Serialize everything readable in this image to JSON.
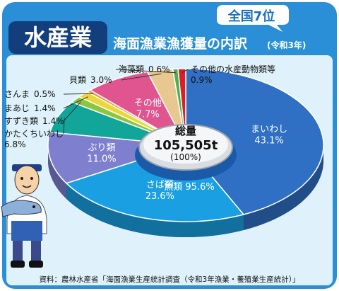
{
  "header": {
    "title": "水産業",
    "subtitle": "海面漁業漁獲量の内訳",
    "year_note": "(令和3年)",
    "rank_badge": "全国7位"
  },
  "center": {
    "label": "総量",
    "value": "105,505t",
    "pct": "(100%)"
  },
  "group_label": "魚類 95.6%",
  "source": "資料：農林水産省「海面漁業生産統計調査（令和3年漁業・養殖業生産統計）」",
  "colors": {
    "frame": "#2a8fd6",
    "background": "#dff2fb",
    "title_bg": "#123e7c",
    "accent": "#c0161a"
  },
  "chart_data": {
    "type": "pie",
    "title": "海面漁業漁獲量の内訳",
    "total": "105,505t",
    "unit": "%",
    "slices": [
      {
        "name": "まいわし",
        "value": 43.1,
        "label": "43.1%",
        "color": "#2f6fc4"
      },
      {
        "name": "さば類",
        "value": 23.6,
        "label": "23.6%",
        "color": "#1aa0e2"
      },
      {
        "name": "ぶり類",
        "value": 11.0,
        "label": "11.0%",
        "color": "#7f7fd0"
      },
      {
        "name": "かたくちいわし",
        "value": 6.8,
        "label": "6.8%",
        "color": "#12a59a"
      },
      {
        "name": "すずき類",
        "value": 1.4,
        "label": "1.4%",
        "color": "#8cc63f"
      },
      {
        "name": "まあじ",
        "value": 1.4,
        "label": "1.4%",
        "color": "#e9d83a"
      },
      {
        "name": "さんま",
        "value": 0.5,
        "label": "0.5%",
        "color": "#f29a3a"
      },
      {
        "name": "その他",
        "value": 7.7,
        "label": "7.7%",
        "color": "#e0558f"
      },
      {
        "name": "貝類",
        "value": 3.0,
        "label": "3.0%",
        "color": "#e8c890"
      },
      {
        "name": "海藻類",
        "value": 0.6,
        "label": "0.6%",
        "color": "#4caf50"
      },
      {
        "name": "その他の水産動物類等",
        "value": 0.9,
        "label": "0.9%",
        "color": "#d8202a"
      }
    ]
  }
}
